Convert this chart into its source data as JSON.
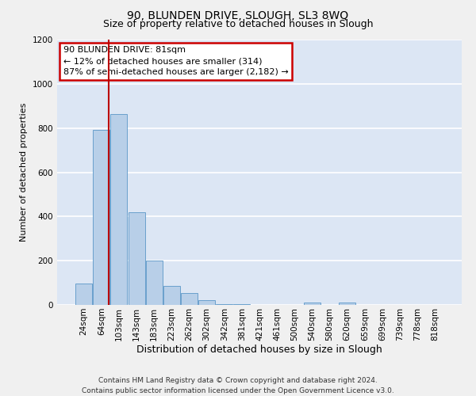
{
  "title": "90, BLUNDEN DRIVE, SLOUGH, SL3 8WQ",
  "subtitle": "Size of property relative to detached houses in Slough",
  "xlabel": "Distribution of detached houses by size in Slough",
  "ylabel": "Number of detached properties",
  "categories": [
    "24sqm",
    "64sqm",
    "103sqm",
    "143sqm",
    "183sqm",
    "223sqm",
    "262sqm",
    "302sqm",
    "342sqm",
    "381sqm",
    "421sqm",
    "461sqm",
    "500sqm",
    "540sqm",
    "580sqm",
    "620sqm",
    "659sqm",
    "699sqm",
    "739sqm",
    "778sqm",
    "818sqm"
  ],
  "values": [
    95,
    790,
    865,
    420,
    200,
    85,
    52,
    22,
    5,
    2,
    1,
    0,
    0,
    12,
    0,
    12,
    0,
    0,
    0,
    0,
    0
  ],
  "bar_color": "#b8cfe8",
  "bar_edge_color": "#6aa0cc",
  "background_color": "#dce6f4",
  "grid_color": "#ffffff",
  "red_line_color": "#bb0000",
  "annotation_box_line1": "90 BLUNDEN DRIVE: 81sqm",
  "annotation_box_line2": "← 12% of detached houses are smaller (314)",
  "annotation_box_line3": "87% of semi-detached houses are larger (2,182) →",
  "ylim": [
    0,
    1200
  ],
  "yticks": [
    0,
    200,
    400,
    600,
    800,
    1000,
    1200
  ],
  "footer_line1": "Contains HM Land Registry data © Crown copyright and database right 2024.",
  "footer_line2": "Contains public sector information licensed under the Open Government Licence v3.0.",
  "title_fontsize": 10,
  "subtitle_fontsize": 9,
  "xlabel_fontsize": 9,
  "ylabel_fontsize": 8,
  "tick_fontsize": 7.5,
  "annotation_fontsize": 8,
  "footer_fontsize": 6.5
}
